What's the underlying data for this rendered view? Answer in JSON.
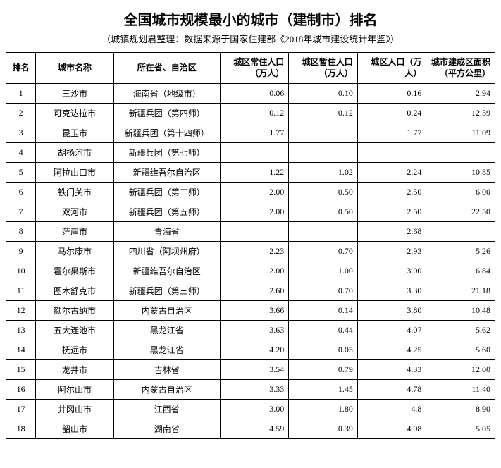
{
  "title": "全国城市规模最小的城市（建制市）排名",
  "subtitle": "（城镇规划君整理：数据来源于国家住建部《2018年城市建设统计年鉴》）",
  "table": {
    "columns": [
      "排名",
      "城市名称",
      "所在省、自治区",
      "城区常住人口（万人）",
      "城区暂住人口（万人）",
      "城区人口（万人）",
      "城市建成区面积（平方公里）"
    ],
    "rows": [
      [
        "1",
        "三沙市",
        "海南省（地级市）",
        "0.06",
        "0.10",
        "0.16",
        "2.94"
      ],
      [
        "2",
        "可克达拉市",
        "新疆兵团（第四师）",
        "0.12",
        "0.12",
        "0.24",
        "12.59"
      ],
      [
        "3",
        "昆玉市",
        "新疆兵团（第十四师）",
        "1.77",
        "",
        "1.77",
        "11.09"
      ],
      [
        "4",
        "胡杨河市",
        "新疆兵团（第七师）",
        "",
        "",
        "",
        ""
      ],
      [
        "5",
        "阿拉山口市",
        "新疆维吾尔自治区",
        "1.22",
        "1.02",
        "2.24",
        "10.85"
      ],
      [
        "6",
        "铁门关市",
        "新疆兵团（第二师）",
        "2.00",
        "0.50",
        "2.50",
        "6.00"
      ],
      [
        "7",
        "双河市",
        "新疆兵团（第五师）",
        "2.00",
        "0.50",
        "2.50",
        "22.50"
      ],
      [
        "8",
        "茫崖市",
        "青海省",
        "",
        "",
        "2.68",
        ""
      ],
      [
        "9",
        "马尔康市",
        "四川省（阿坝州府）",
        "2.23",
        "0.70",
        "2.93",
        "5.26"
      ],
      [
        "10",
        "霍尔果斯市",
        "新疆维吾尔自治区",
        "2.00",
        "1.00",
        "3.00",
        "6.84"
      ],
      [
        "11",
        "图木舒克市",
        "新疆兵团（第三师）",
        "2.60",
        "0.70",
        "3.30",
        "21.18"
      ],
      [
        "12",
        "额尔古纳市",
        "内蒙古自治区",
        "3.66",
        "0.14",
        "3.80",
        "10.48"
      ],
      [
        "13",
        "五大连池市",
        "黑龙江省",
        "3.63",
        "0.44",
        "4.07",
        "5.62"
      ],
      [
        "14",
        "抚远市",
        "黑龙江省",
        "4.20",
        "0.05",
        "4.25",
        "5.60"
      ],
      [
        "15",
        "龙井市",
        "吉林省",
        "3.54",
        "0.79",
        "4.33",
        "12.00"
      ],
      [
        "16",
        "阿尔山市",
        "内蒙古自治区",
        "3.33",
        "1.45",
        "4.78",
        "11.40"
      ],
      [
        "17",
        "井冈山市",
        "江西省",
        "3.00",
        "1.80",
        "4.8",
        "8.90"
      ],
      [
        "18",
        "韶山市",
        "湖南省",
        "4.59",
        "0.39",
        "4.98",
        "5.05"
      ]
    ]
  }
}
